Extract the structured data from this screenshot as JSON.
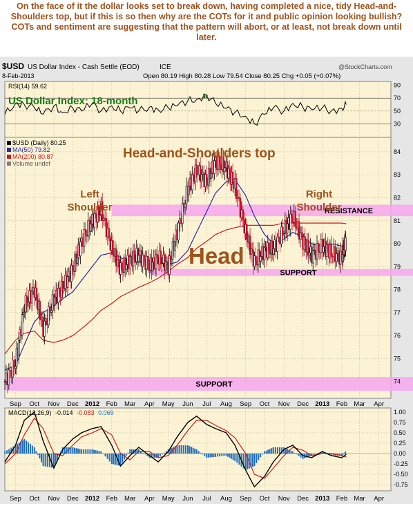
{
  "caption": "On the face of it the dollar looks set to break down, having completed a nice, tidy Head-and-Shoulders top, but if this is so then why are the COTs for it and public opinion looking bullish? COTs and sentiment are suggesting that the pattern will abort, or at least, not break down until later.",
  "header": {
    "symbol": "$USD",
    "name": "US Dollar Index - Cash Settle (EOD)",
    "exchange": "ICE",
    "date": "8-Feb-2013",
    "ohlc": "Open 80.19  High 80.28  Low 79.54  Close 80.25  Chg +0.05 (+0.07%)",
    "copyright": "@StockCharts.com"
  },
  "chart_data": [
    {
      "type": "line",
      "panel": "rsi",
      "label": "RSI(14) 59.62",
      "ylim": [
        10,
        95
      ],
      "yticks": [
        90,
        70,
        50,
        30
      ],
      "reference_lines": [
        70,
        30
      ],
      "x": [
        "2011-08-15",
        "2011-09-01",
        "2011-09-15",
        "2011-10-01",
        "2011-10-15",
        "2011-11-01",
        "2011-11-15",
        "2011-12-01",
        "2011-12-15",
        "2012-01-01",
        "2012-01-15",
        "2012-02-01",
        "2012-02-15",
        "2012-03-01",
        "2012-03-15",
        "2012-04-01",
        "2012-04-15",
        "2012-05-01",
        "2012-05-15",
        "2012-06-01",
        "2012-06-15",
        "2012-07-01",
        "2012-07-15",
        "2012-08-01",
        "2012-08-15",
        "2012-09-01",
        "2012-09-15",
        "2012-10-01",
        "2012-10-15",
        "2012-11-01",
        "2012-11-15",
        "2012-12-01",
        "2012-12-15",
        "2013-01-01",
        "2013-01-15",
        "2013-02-01",
        "2013-02-08"
      ],
      "values": [
        45,
        62,
        60,
        55,
        45,
        58,
        48,
        55,
        50,
        62,
        50,
        58,
        50,
        55,
        50,
        56,
        52,
        55,
        58,
        66,
        68,
        75,
        62,
        54,
        48,
        42,
        30,
        45,
        55,
        50,
        62,
        56,
        52,
        55,
        50,
        54,
        60
      ],
      "fill_above": 70,
      "fill_below": 30
    },
    {
      "type": "candlestick",
      "panel": "price",
      "title": "US Dollar Index: 18-month",
      "legend": [
        {
          "name": "$USD (Daily) 80.25",
          "color": "#000000"
        },
        {
          "name": "MA(50) 79.82",
          "color": "#2a2aa8"
        },
        {
          "name": "MA(200) 80.87",
          "color": "#d01818"
        },
        {
          "name": "Volume undef",
          "color": "#808080"
        }
      ],
      "ylim": [
        73.3,
        84.6
      ],
      "yticks": [
        84,
        83,
        82,
        81,
        80,
        79,
        78,
        77,
        76,
        75,
        74
      ],
      "x": [
        "2011-08-15",
        "2011-09-01",
        "2011-09-15",
        "2011-10-01",
        "2011-10-15",
        "2011-11-01",
        "2011-11-15",
        "2011-12-01",
        "2011-12-15",
        "2012-01-01",
        "2012-01-15",
        "2012-02-01",
        "2012-02-15",
        "2012-03-01",
        "2012-03-15",
        "2012-04-01",
        "2012-04-15",
        "2012-05-01",
        "2012-05-15",
        "2012-06-01",
        "2012-06-15",
        "2012-07-01",
        "2012-07-15",
        "2012-08-01",
        "2012-08-15",
        "2012-09-01",
        "2012-09-15",
        "2012-10-01",
        "2012-10-15",
        "2012-11-01",
        "2012-11-15",
        "2012-12-01",
        "2012-12-15",
        "2013-01-01",
        "2013-01-15",
        "2013-02-01",
        "2013-02-08"
      ],
      "values": [
        74.0,
        74.8,
        77.3,
        78.0,
        76.3,
        77.6,
        78.1,
        78.9,
        80.1,
        81.0,
        81.5,
        79.8,
        78.9,
        79.3,
        79.5,
        79.0,
        79.4,
        79.0,
        80.5,
        82.4,
        83.2,
        82.7,
        83.6,
        83.3,
        82.5,
        80.5,
        79.2,
        79.7,
        79.8,
        80.6,
        81.2,
        80.1,
        79.5,
        79.9,
        79.6,
        79.4,
        80.25
      ],
      "ma50": [
        74.5,
        74.7,
        75.6,
        76.6,
        77.0,
        77.3,
        77.6,
        77.9,
        78.4,
        79.0,
        79.5,
        79.6,
        79.4,
        79.2,
        79.2,
        79.3,
        79.2,
        79.1,
        79.2,
        79.7,
        80.5,
        81.4,
        82.2,
        82.7,
        82.8,
        82.1,
        81.2,
        80.4,
        80.0,
        80.2,
        80.5,
        80.3,
        80.0,
        79.9,
        80.0,
        79.9,
        79.82
      ],
      "ma200": [
        75.2,
        75.8,
        76.1,
        76.2,
        75.8,
        75.7,
        75.8,
        76.0,
        76.3,
        76.7,
        77.1,
        77.4,
        77.7,
        77.9,
        78.1,
        78.3,
        78.5,
        78.8,
        79.1,
        79.4,
        79.8,
        80.1,
        80.4,
        80.6,
        80.7,
        80.8,
        80.8,
        80.8,
        80.8,
        80.9,
        80.9,
        80.9,
        80.9,
        80.9,
        80.9,
        80.9,
        80.87
      ],
      "bands": [
        {
          "label": "RESISTANCE",
          "from": 81.2,
          "to": 81.7,
          "x_start": "2012-02-01"
        },
        {
          "label": "SUPPORT",
          "from": 78.6,
          "to": 78.9,
          "x_start": "2012-04-01"
        },
        {
          "label": "SUPPORT",
          "from": 73.6,
          "to": 74.2,
          "x_start": "2011-08-15"
        }
      ],
      "annotations": [
        "Head-and-Shoulders top",
        "Left Shoulder",
        "Head",
        "Right Shoulder"
      ]
    },
    {
      "type": "line",
      "panel": "macd",
      "label": "MACD(12,26,9)",
      "label_values": [
        "-0.014",
        "-0.083",
        "0.069"
      ],
      "ylim": [
        -0.88,
        1.08
      ],
      "yticks": [
        1.0,
        0.75,
        0.5,
        0.25,
        0.0,
        -0.25,
        -0.5,
        -0.75
      ],
      "x": [
        "2011-08-15",
        "2011-09-01",
        "2011-09-15",
        "2011-10-01",
        "2011-10-15",
        "2011-11-01",
        "2011-11-15",
        "2011-12-01",
        "2011-12-15",
        "2012-01-01",
        "2012-01-15",
        "2012-02-01",
        "2012-02-15",
        "2012-03-01",
        "2012-03-15",
        "2012-04-01",
        "2012-04-15",
        "2012-05-01",
        "2012-05-15",
        "2012-06-01",
        "2012-06-15",
        "2012-07-01",
        "2012-07-15",
        "2012-08-01",
        "2012-08-15",
        "2012-09-01",
        "2012-09-15",
        "2012-10-01",
        "2012-10-15",
        "2012-11-01",
        "2012-11-15",
        "2012-12-01",
        "2012-12-15",
        "2013-01-01",
        "2013-01-15",
        "2013-02-01",
        "2013-02-08"
      ],
      "series": [
        {
          "name": "MACD(12,26,9)",
          "color": "#000000",
          "values": [
            -0.2,
            0.2,
            0.8,
            1.0,
            0.3,
            -0.35,
            0.1,
            0.35,
            0.5,
            0.6,
            0.65,
            0.2,
            -0.3,
            -0.05,
            0.15,
            -0.05,
            -0.2,
            0.05,
            0.4,
            0.75,
            0.9,
            0.7,
            0.6,
            0.5,
            0.2,
            -0.4,
            -0.8,
            -0.55,
            -0.2,
            0.1,
            0.2,
            -0.05,
            -0.1,
            0.05,
            -0.05,
            -0.1,
            -0.014
          ]
        },
        {
          "name": "Signal",
          "color": "#d01818",
          "values": [
            -0.25,
            0.0,
            0.45,
            0.85,
            0.6,
            0.0,
            -0.05,
            0.2,
            0.4,
            0.5,
            0.6,
            0.45,
            0.0,
            -0.15,
            0.05,
            0.05,
            -0.1,
            -0.05,
            0.2,
            0.55,
            0.8,
            0.8,
            0.68,
            0.55,
            0.38,
            0.0,
            -0.5,
            -0.6,
            -0.35,
            -0.05,
            0.15,
            0.08,
            -0.05,
            0.0,
            0.0,
            -0.05,
            -0.083
          ]
        },
        {
          "name": "Histogram",
          "color": "#2070c0",
          "values": [
            0.05,
            0.2,
            0.35,
            0.15,
            -0.3,
            -0.35,
            0.15,
            0.15,
            0.1,
            0.1,
            0.05,
            -0.25,
            -0.3,
            0.1,
            0.1,
            -0.1,
            -0.1,
            0.1,
            0.2,
            0.2,
            0.1,
            -0.1,
            -0.08,
            -0.05,
            -0.18,
            -0.4,
            -0.3,
            0.05,
            0.15,
            0.15,
            0.05,
            -0.13,
            -0.05,
            0.05,
            -0.05,
            -0.05,
            0.069
          ]
        }
      ]
    }
  ],
  "x_axis": {
    "labels": [
      "Sep",
      "Oct",
      "Nov",
      "Dec",
      "2012",
      "Feb",
      "Mar",
      "Apr",
      "May",
      "Jun",
      "Jul",
      "Aug",
      "Sep",
      "Oct",
      "Nov",
      "Dec",
      "2013",
      "Feb",
      "Mar",
      "Apr"
    ],
    "label_dates": [
      "2011-09-01",
      "2011-10-01",
      "2011-11-01",
      "2011-12-01",
      "2012-01-01",
      "2012-02-01",
      "2012-03-01",
      "2012-04-01",
      "2012-05-01",
      "2012-06-01",
      "2012-07-01",
      "2012-08-01",
      "2012-09-01",
      "2012-10-01",
      "2012-11-01",
      "2012-12-01",
      "2013-01-01",
      "2013-02-01",
      "2013-03-01",
      "2013-04-01"
    ],
    "range": [
      "2011-08-15",
      "2013-04-20"
    ]
  },
  "colors": {
    "panel_bg": "#fcf3d4",
    "band": "#f6a6f0",
    "annotation": "#a0521b",
    "title_green": "#108010",
    "candle_up": "#000000",
    "candle_down": "#c8102e"
  }
}
